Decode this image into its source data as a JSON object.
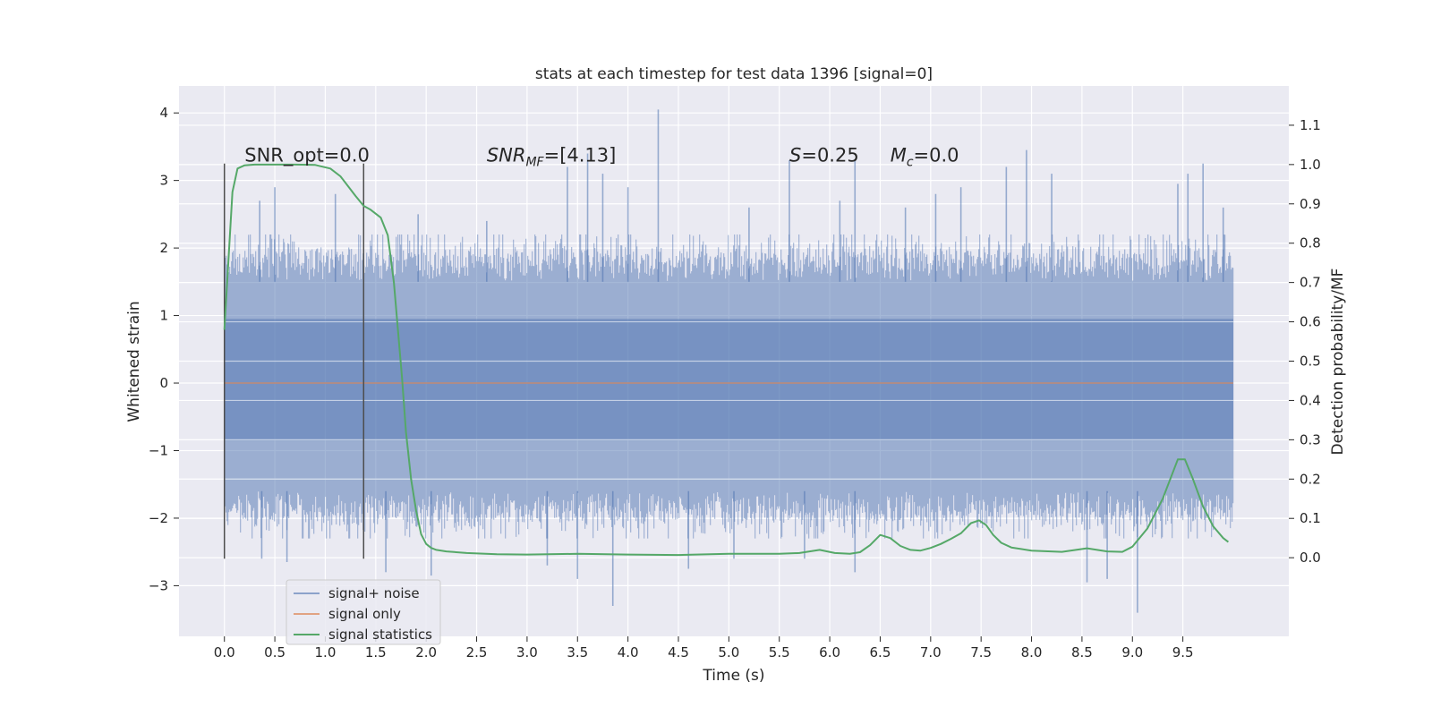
{
  "chart_data": {
    "type": "line",
    "title": "stats at each timestep for test data 1396 [signal=0]",
    "xlabel": "Time (s)",
    "ylabel": "Whitened strain",
    "y2label": "Detection probability/MF",
    "xlim": [
      -0.45,
      10.55
    ],
    "ylim": [
      -3.75,
      4.4
    ],
    "y2lim": [
      -0.2,
      1.2
    ],
    "x_ticks": [
      0.0,
      0.5,
      1.0,
      1.5,
      2.0,
      2.5,
      3.0,
      3.5,
      4.0,
      4.5,
      5.0,
      5.5,
      6.0,
      6.5,
      7.0,
      7.5,
      8.0,
      8.5,
      9.0,
      9.5
    ],
    "x_tick_labels": [
      "0.0",
      "0.5",
      "1.0",
      "1.5",
      "2.0",
      "2.5",
      "3.0",
      "3.5",
      "4.0",
      "4.5",
      "5.0",
      "5.5",
      "6.0",
      "6.5",
      "7.0",
      "7.5",
      "8.0",
      "8.5",
      "9.0",
      "9.5"
    ],
    "y_ticks": [
      -3,
      -2,
      -1,
      0,
      1,
      2,
      3,
      4
    ],
    "y_tick_labels": [
      "−3",
      "−2",
      "−1",
      "0",
      "1",
      "2",
      "3",
      "4"
    ],
    "y2_ticks": [
      0.0,
      0.1,
      0.2,
      0.3,
      0.4,
      0.5,
      0.6,
      0.7,
      0.8,
      0.9,
      1.0,
      1.1
    ],
    "y2_tick_labels": [
      "0.0",
      "0.1",
      "0.2",
      "0.3",
      "0.4",
      "0.5",
      "0.6",
      "0.7",
      "0.8",
      "0.9",
      "1.0",
      "1.1"
    ],
    "grid": true,
    "legend_placement": "lower-left",
    "noise_envelope": {
      "x_range": [
        0.0,
        10.0
      ],
      "core_range": [
        -0.85,
        0.95
      ],
      "typical_range": [
        -1.6,
        1.5
      ],
      "spikes": [
        {
          "x": 0.35,
          "y": 2.7
        },
        {
          "x": 0.37,
          "y": -2.6
        },
        {
          "x": 0.62,
          "y": -2.65
        },
        {
          "x": 0.5,
          "y": 2.9
        },
        {
          "x": 1.1,
          "y": 2.8
        },
        {
          "x": 1.6,
          "y": -2.8
        },
        {
          "x": 1.92,
          "y": 2.5
        },
        {
          "x": 2.05,
          "y": -2.85
        },
        {
          "x": 2.6,
          "y": 2.4
        },
        {
          "x": 3.2,
          "y": -2.7
        },
        {
          "x": 3.4,
          "y": 3.2
        },
        {
          "x": 3.5,
          "y": -2.9
        },
        {
          "x": 3.6,
          "y": 3.4
        },
        {
          "x": 3.75,
          "y": 3.1
        },
        {
          "x": 3.85,
          "y": -3.3
        },
        {
          "x": 4.0,
          "y": 2.9
        },
        {
          "x": 4.3,
          "y": 4.05
        },
        {
          "x": 4.6,
          "y": -2.75
        },
        {
          "x": 5.05,
          "y": -2.6
        },
        {
          "x": 5.2,
          "y": 2.6
        },
        {
          "x": 5.6,
          "y": 3.3
        },
        {
          "x": 5.75,
          "y": -2.6
        },
        {
          "x": 6.1,
          "y": 2.7
        },
        {
          "x": 6.25,
          "y": 3.3
        },
        {
          "x": 6.25,
          "y": -2.8
        },
        {
          "x": 6.75,
          "y": 2.6
        },
        {
          "x": 7.05,
          "y": 2.8
        },
        {
          "x": 7.3,
          "y": 2.9
        },
        {
          "x": 7.75,
          "y": 3.2
        },
        {
          "x": 7.95,
          "y": 3.45
        },
        {
          "x": 8.2,
          "y": 3.1
        },
        {
          "x": 8.55,
          "y": -2.95
        },
        {
          "x": 8.75,
          "y": -2.9
        },
        {
          "x": 9.05,
          "y": -3.4
        },
        {
          "x": 9.45,
          "y": 2.95
        },
        {
          "x": 9.55,
          "y": 3.1
        },
        {
          "x": 9.7,
          "y": 3.25
        },
        {
          "x": 9.9,
          "y": 2.6
        }
      ]
    },
    "series": [
      {
        "name": "signal+ noise",
        "color": "#4c72b0",
        "axis": "left",
        "x": [
          0.0,
          10.0
        ]
      },
      {
        "name": "signal only",
        "color": "#dd8452",
        "axis": "left",
        "x": [
          0.0,
          10.0
        ],
        "y": [
          0.0,
          0.0
        ]
      },
      {
        "name": "signal statistics",
        "color": "#55a868",
        "axis": "right",
        "x": [
          0.0,
          0.08,
          0.13,
          0.2,
          0.3,
          0.5,
          0.7,
          0.9,
          1.05,
          1.15,
          1.3,
          1.38,
          1.45,
          1.55,
          1.62,
          1.68,
          1.72,
          1.76,
          1.8,
          1.85,
          1.9,
          1.95,
          2.0,
          2.05,
          2.1,
          2.2,
          2.4,
          2.7,
          3.0,
          3.5,
          4.0,
          4.5,
          5.0,
          5.5,
          5.7,
          5.9,
          6.05,
          6.2,
          6.3,
          6.4,
          6.5,
          6.6,
          6.7,
          6.8,
          6.9,
          7.0,
          7.1,
          7.2,
          7.3,
          7.4,
          7.48,
          7.55,
          7.62,
          7.7,
          7.8,
          8.0,
          8.3,
          8.55,
          8.75,
          8.9,
          9.0,
          9.15,
          9.3,
          9.45,
          9.52,
          9.6,
          9.7,
          9.8,
          9.9,
          9.95
        ],
        "y": [
          0.58,
          0.93,
          0.99,
          0.998,
          1.0,
          1.0,
          1.0,
          0.999,
          0.99,
          0.97,
          0.92,
          0.895,
          0.885,
          0.865,
          0.82,
          0.7,
          0.58,
          0.46,
          0.32,
          0.2,
          0.12,
          0.06,
          0.035,
          0.025,
          0.02,
          0.016,
          0.012,
          0.009,
          0.008,
          0.01,
          0.008,
          0.007,
          0.01,
          0.01,
          0.012,
          0.02,
          0.012,
          0.01,
          0.014,
          0.032,
          0.058,
          0.05,
          0.03,
          0.02,
          0.018,
          0.025,
          0.035,
          0.048,
          0.062,
          0.088,
          0.095,
          0.083,
          0.058,
          0.038,
          0.026,
          0.018,
          0.015,
          0.024,
          0.016,
          0.015,
          0.028,
          0.075,
          0.15,
          0.25,
          0.25,
          0.2,
          0.13,
          0.08,
          0.05,
          0.04
        ]
      }
    ],
    "vertical_markers": [
      {
        "x": 0.0,
        "y_range": [
          -2.6,
          3.25
        ]
      },
      {
        "x": 1.38,
        "y_range": [
          -2.6,
          3.25
        ]
      }
    ],
    "annotations": [
      {
        "text": "SNR_opt=0.0",
        "x": 0.2,
        "y": 3.28
      },
      {
        "text_pre": "",
        "text_math": "SNR",
        "text_sub": "MF",
        "text_post": "=[4.13]",
        "x": 2.6,
        "y": 3.28
      },
      {
        "text_math": "S",
        "text_post": "=0.25",
        "x": 5.6,
        "y": 3.28
      },
      {
        "text_math": "M",
        "text_sub": "c",
        "text_post": "=0.0",
        "x": 6.6,
        "y": 3.28
      }
    ]
  },
  "colors": {
    "plot_bg": "#eaeaf2",
    "grid": "#ffffff",
    "text": "#262626",
    "marker": "#4d4d4d"
  }
}
